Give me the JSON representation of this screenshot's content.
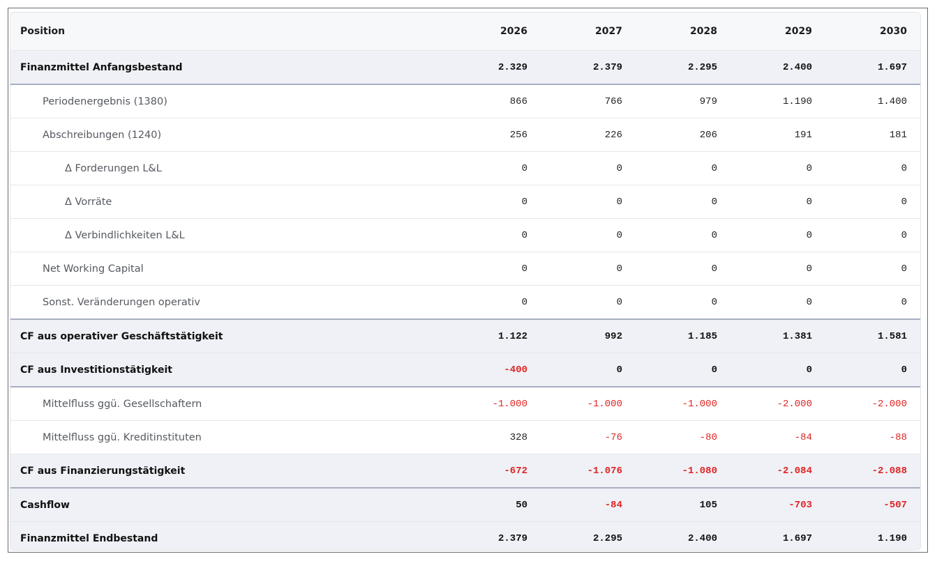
{
  "table": {
    "header": [
      "Position",
      "2026",
      "2027",
      "2028",
      "2029",
      "2030"
    ],
    "rows": [
      [
        "Finanzmittel Anfangsbestand",
        "2.329",
        "2.379",
        "2.295",
        "2.400",
        "1.697"
      ],
      [
        "Periodenergebnis (1380)",
        "866",
        "766",
        "979",
        "1.190",
        "1.400"
      ],
      [
        "Abschreibungen (1240)",
        "256",
        "226",
        "206",
        "191",
        "181"
      ],
      [
        "Δ Forderungen L&L",
        "0",
        "0",
        "0",
        "0",
        "0"
      ],
      [
        "Δ Vorräte",
        "0",
        "0",
        "0",
        "0",
        "0"
      ],
      [
        "Δ Verbindlichkeiten L&L",
        "0",
        "0",
        "0",
        "0",
        "0"
      ],
      [
        "Net Working Capital",
        "0",
        "0",
        "0",
        "0",
        "0"
      ],
      [
        "Sonst. Veränderungen operativ",
        "0",
        "0",
        "0",
        "0",
        "0"
      ],
      [
        "CF aus operativer Geschäftstätigkeit",
        "1.122",
        "992",
        "1.185",
        "1.381",
        "1.581"
      ],
      [
        "CF aus Investitionstätigkeit",
        "-400",
        "0",
        "0",
        "0",
        "0"
      ],
      [
        "Mittelfluss ggü. Gesellschaftern",
        "-1.000",
        "-1.000",
        "-1.000",
        "-2.000",
        "-2.000"
      ],
      [
        "Mittelfluss ggü. Kreditinstituten",
        "328",
        "-76",
        "-80",
        "-84",
        "-88"
      ],
      [
        "CF aus Finanzierungstätigkeit",
        "-672",
        "-1.076",
        "-1.080",
        "-2.084",
        "-2.088"
      ],
      [
        "Cashflow",
        "50",
        "-84",
        "105",
        "-703",
        "-507"
      ],
      [
        "Finanzmittel Endbestand",
        "2.379",
        "2.295",
        "2.400",
        "1.697",
        "1.190"
      ]
    ]
  }
}
